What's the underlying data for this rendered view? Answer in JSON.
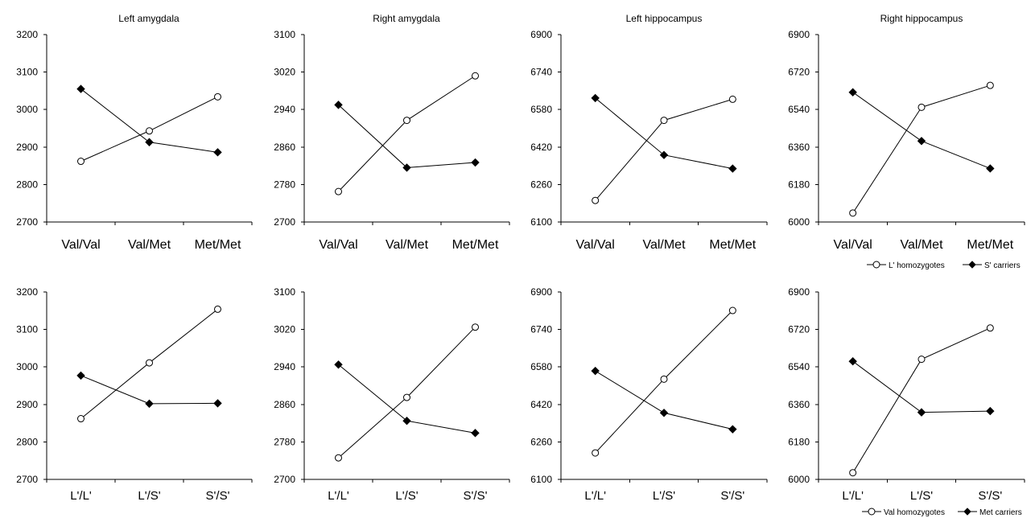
{
  "legends": [
    {
      "items": [
        {
          "name": "L' homozygotes",
          "marker": "open-circle"
        },
        {
          "name": "S' carriers",
          "marker": "filled-diamond"
        }
      ]
    },
    {
      "items": [
        {
          "name": "Val homozygotes",
          "marker": "open-circle"
        },
        {
          "name": "Met carriers",
          "marker": "filled-diamond"
        }
      ]
    }
  ],
  "colors": {
    "line": "#000000",
    "open_marker_fill": "#ffffff",
    "filled_marker": "#000000"
  },
  "chart_data": [
    {
      "type": "line",
      "title": "Left amygdala",
      "categories": [
        "Val/Val",
        "Val/Met",
        "Met/Met"
      ],
      "yticks": [
        "3200",
        "3100",
        "3000",
        "2900",
        "2800",
        "2700"
      ],
      "ylim": [
        2700,
        3200
      ],
      "series": [
        {
          "name": "L' homozygotes",
          "marker": "open-circle",
          "values": [
            2862,
            2943,
            3034
          ]
        },
        {
          "name": "S' carriers",
          "marker": "filled-diamond",
          "values": [
            3055,
            2913,
            2886
          ]
        }
      ]
    },
    {
      "type": "line",
      "title": "Right amygdala",
      "categories": [
        "Val/Val",
        "Val/Met",
        "Met/Met"
      ],
      "yticks": [
        "3100",
        "3020",
        "2940",
        "2860",
        "2780",
        "2700"
      ],
      "ylim": [
        2700,
        3100
      ],
      "series": [
        {
          "name": "L' homozygotes",
          "marker": "open-circle",
          "values": [
            2765,
            2917,
            3012
          ]
        },
        {
          "name": "S' carriers",
          "marker": "filled-diamond",
          "values": [
            2950,
            2816,
            2827
          ]
        }
      ]
    },
    {
      "type": "line",
      "title": "Left hippocampus",
      "categories": [
        "Val/Val",
        "Val/Met",
        "Met/Met"
      ],
      "yticks": [
        "6900",
        "6740",
        "6580",
        "6420",
        "6260",
        "6100"
      ],
      "ylim": [
        6100,
        6900
      ],
      "series": [
        {
          "name": "L' homozygotes",
          "marker": "open-circle",
          "values": [
            6192,
            6534,
            6624
          ]
        },
        {
          "name": "S' carriers",
          "marker": "filled-diamond",
          "values": [
            6629,
            6386,
            6328
          ]
        }
      ]
    },
    {
      "type": "line",
      "title": "Right hippocampus",
      "categories": [
        "Val/Val",
        "Val/Met",
        "Met/Met"
      ],
      "yticks": [
        "6900",
        "6720",
        "6540",
        "6360",
        "6180",
        "6000"
      ],
      "ylim": [
        6000,
        6900
      ],
      "series": [
        {
          "name": "L' homozygotes",
          "marker": "open-circle",
          "values": [
            6043,
            6551,
            6656
          ]
        },
        {
          "name": "S' carriers",
          "marker": "filled-diamond",
          "values": [
            6623,
            6389,
            6257
          ]
        }
      ]
    },
    {
      "type": "line",
      "title": "",
      "categories": [
        "L'/L'",
        "L'/S'",
        "S'/S'"
      ],
      "yticks": [
        "3200",
        "3100",
        "3000",
        "2900",
        "2800",
        "2700"
      ],
      "ylim": [
        2700,
        3200
      ],
      "series": [
        {
          "name": "Val homozygotes",
          "marker": "open-circle",
          "values": [
            2862,
            3011,
            3154
          ]
        },
        {
          "name": "Met carriers",
          "marker": "filled-diamond",
          "values": [
            2977,
            2902,
            2903
          ]
        }
      ]
    },
    {
      "type": "line",
      "title": "",
      "categories": [
        "L'/L'",
        "L'/S'",
        "S'/S'"
      ],
      "yticks": [
        "3100",
        "3020",
        "2940",
        "2860",
        "2780",
        "2700"
      ],
      "ylim": [
        2700,
        3100
      ],
      "series": [
        {
          "name": "Val homozygotes",
          "marker": "open-circle",
          "values": [
            2746,
            2875,
            3025
          ]
        },
        {
          "name": "Met carriers",
          "marker": "filled-diamond",
          "values": [
            2945,
            2825,
            2799
          ]
        }
      ]
    },
    {
      "type": "line",
      "title": "",
      "categories": [
        "L'/L'",
        "L'/S'",
        "S'/S'"
      ],
      "yticks": [
        "6900",
        "6740",
        "6580",
        "6420",
        "6260",
        "6100"
      ],
      "ylim": [
        6100,
        6900
      ],
      "series": [
        {
          "name": "Val homozygotes",
          "marker": "open-circle",
          "values": [
            6213,
            6528,
            6821
          ]
        },
        {
          "name": "Met carriers",
          "marker": "filled-diamond",
          "values": [
            6563,
            6384,
            6314
          ]
        }
      ]
    },
    {
      "type": "line",
      "title": "",
      "categories": [
        "L'/L'",
        "L'/S'",
        "S'/S'"
      ],
      "yticks": [
        "6900",
        "6720",
        "6540",
        "6360",
        "6180",
        "6000"
      ],
      "ylim": [
        6000,
        6900
      ],
      "series": [
        {
          "name": "Val homozygotes",
          "marker": "open-circle",
          "values": [
            6032,
            6577,
            6727
          ]
        },
        {
          "name": "Met carriers",
          "marker": "filled-diamond",
          "values": [
            6567,
            6322,
            6328
          ]
        }
      ]
    }
  ]
}
